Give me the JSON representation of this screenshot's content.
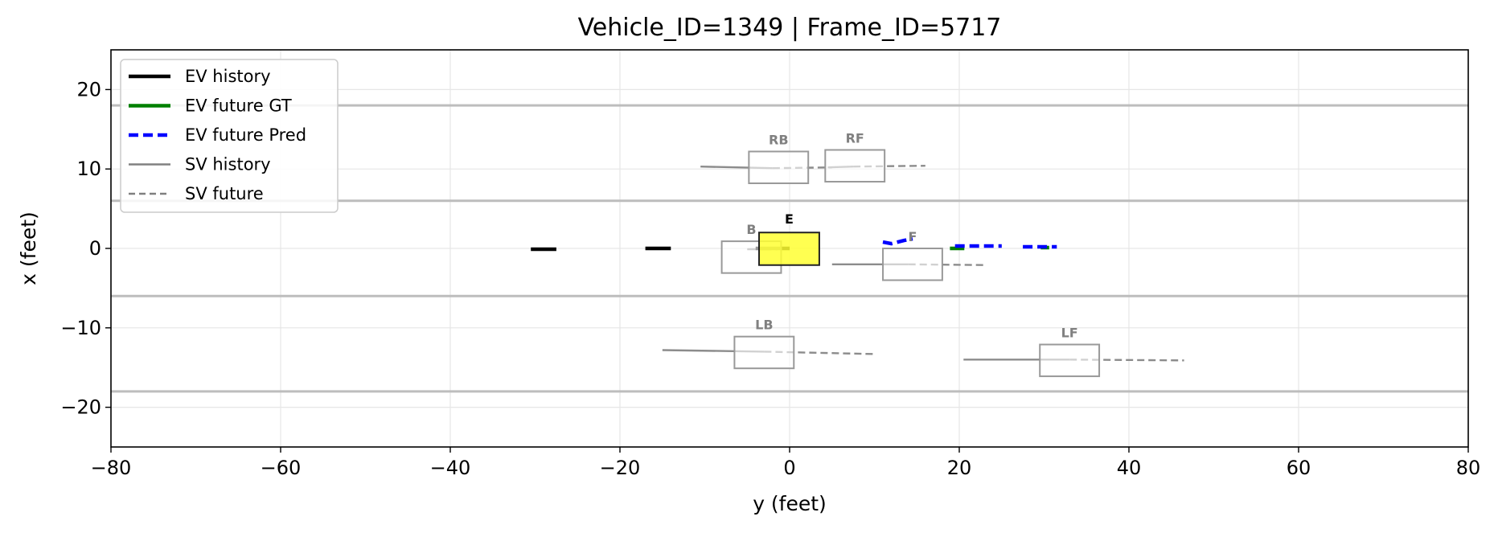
{
  "chart_data": {
    "type": "scatter",
    "title": "Vehicle_ID=1349  |  Frame_ID=5717",
    "xlabel": "y (feet)",
    "ylabel": "x (feet)",
    "xlim": [
      -80,
      80
    ],
    "ylim": [
      -25,
      25
    ],
    "xticks": [
      -80,
      -60,
      -40,
      -20,
      0,
      20,
      40,
      60,
      80
    ],
    "yticks": [
      -20,
      -10,
      0,
      10,
      20
    ],
    "grid": true,
    "legend_placement": "upper-left",
    "lane_lines_x": [
      18,
      6,
      -6,
      -18
    ],
    "legend": [
      {
        "label": "EV history",
        "color": "#000000",
        "style": "solid-thick"
      },
      {
        "label": "EV future GT",
        "color": "#008000",
        "style": "solid-thick"
      },
      {
        "label": "EV future Pred",
        "color": "#0000ff",
        "style": "dashed-thick"
      },
      {
        "label": "SV history",
        "color": "#808080",
        "style": "solid"
      },
      {
        "label": "SV future",
        "color": "#808080",
        "style": "dashed"
      }
    ],
    "ev": {
      "label": "E",
      "box_color": "#ffff33",
      "box": {
        "y_min": -3.6,
        "y_max": 3.5,
        "x_min": -2.1,
        "x_max": 2.0
      },
      "history_segments": [
        [
          [
            -30.5,
            -0.1
          ],
          [
            -27.5,
            -0.1
          ]
        ],
        [
          [
            -17.0,
            0.0
          ],
          [
            -14.0,
            0.0
          ]
        ],
        [
          [
            -4.0,
            0.0
          ],
          [
            0.0,
            0.0
          ]
        ]
      ],
      "future_gt_segments": [
        [
          [
            18.9,
            0.0
          ],
          [
            20.6,
            0.0
          ]
        ],
        [
          [
            29.6,
            0.1
          ],
          [
            30.6,
            0.1
          ]
        ]
      ],
      "future_pred_segments": [
        [
          [
            11.0,
            0.8
          ],
          [
            12.0,
            0.6
          ],
          [
            13.5,
            1.0
          ],
          [
            14.5,
            1.2
          ]
        ],
        [
          [
            19.5,
            0.3
          ],
          [
            21.5,
            0.3
          ],
          [
            23.5,
            0.3
          ],
          [
            25.0,
            0.3
          ]
        ],
        [
          [
            27.5,
            0.2
          ],
          [
            29.5,
            0.2
          ],
          [
            31.5,
            0.2
          ]
        ]
      ]
    },
    "surrounding_vehicles": [
      {
        "label": "RB",
        "box": {
          "y_min": -4.8,
          "y_max": 2.2,
          "x_min": 8.2,
          "x_max": 12.2
        },
        "history": [
          [
            -10.5,
            10.3
          ],
          [
            -2.0,
            10.1
          ]
        ],
        "future": [
          [
            -2.0,
            10.1
          ],
          [
            5.0,
            10.2
          ]
        ]
      },
      {
        "label": "RF",
        "box": {
          "y_min": 4.2,
          "y_max": 11.2,
          "x_min": 8.4,
          "x_max": 12.4
        },
        "history": [
          [
            4.5,
            10.2
          ],
          [
            7.5,
            10.3
          ]
        ],
        "future": [
          [
            7.5,
            10.3
          ],
          [
            16.0,
            10.4
          ]
        ]
      },
      {
        "label": "B",
        "box": {
          "y_min": -8.0,
          "y_max": -1.0,
          "x_min": -3.1,
          "x_max": 0.9
        },
        "history": [
          [
            -5.0,
            -0.1
          ],
          [
            -3.0,
            -0.1
          ]
        ],
        "future": [
          [
            -3.0,
            -0.1
          ],
          [
            -1.5,
            -0.1
          ]
        ]
      },
      {
        "label": "F",
        "box": {
          "y_min": 11.0,
          "y_max": 18.0,
          "x_min": -4.0,
          "x_max": 0.0
        },
        "history": [
          [
            5.0,
            -2.0
          ],
          [
            14.0,
            -2.0
          ]
        ],
        "future": [
          [
            14.0,
            -2.0
          ],
          [
            23.0,
            -2.1
          ]
        ]
      },
      {
        "label": "LB",
        "box": {
          "y_min": -6.5,
          "y_max": 0.5,
          "x_min": -15.1,
          "x_max": -11.1
        },
        "history": [
          [
            -15.0,
            -12.8
          ],
          [
            -3.0,
            -13.0
          ]
        ],
        "future": [
          [
            -3.0,
            -13.0
          ],
          [
            10.0,
            -13.3
          ]
        ]
      },
      {
        "label": "LF",
        "box": {
          "y_min": 29.5,
          "y_max": 36.5,
          "x_min": -16.1,
          "x_max": -12.1
        },
        "history": [
          [
            20.5,
            -14.0
          ],
          [
            33.0,
            -14.0
          ]
        ],
        "future": [
          [
            33.0,
            -14.0
          ],
          [
            46.5,
            -14.1
          ]
        ]
      }
    ]
  }
}
